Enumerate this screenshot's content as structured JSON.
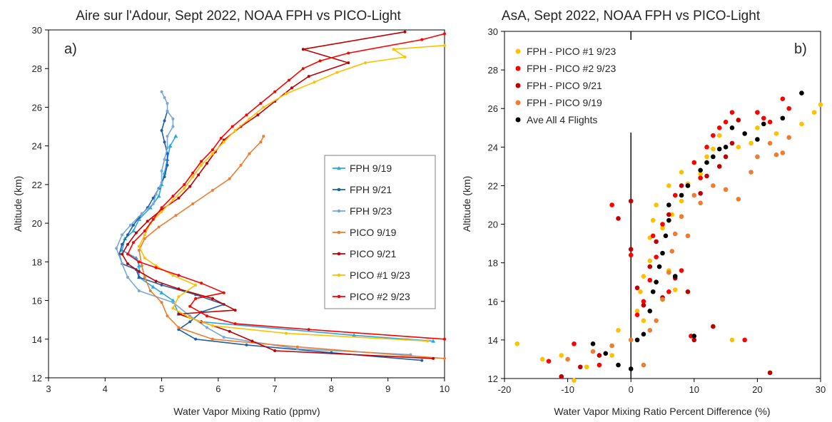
{
  "chart_data": [
    {
      "type": "line",
      "title": "Aire sur l'Adour, Sept 2022, NOAA FPH vs PICO-Light",
      "panel_label": "a)",
      "xlabel": "Water Vapor Mixing Ratio (ppmv)",
      "ylabel": "Altitude (km)",
      "xlim": [
        3,
        10
      ],
      "ylim": [
        12,
        30
      ],
      "xticks": [
        "3",
        "4",
        "5",
        "6",
        "7",
        "8",
        "9",
        "10"
      ],
      "yticks": [
        "12",
        "14",
        "16",
        "18",
        "20",
        "22",
        "24",
        "26",
        "28",
        "30"
      ],
      "grid": false,
      "legend_position": "right",
      "series": [
        {
          "name": "FPH 9/19",
          "color": "#29a8e0",
          "marker": "triangle",
          "x": [
            9.8,
            8.4,
            5.7,
            5.3,
            5.2,
            5.0,
            4.85,
            4.6,
            4.6,
            4.55,
            4.3,
            4.35,
            4.5,
            4.6,
            4.8,
            4.95,
            5.0,
            5.05,
            5.1,
            5.15,
            5.25
          ],
          "y": [
            13.9,
            14.2,
            14.9,
            15.3,
            16.0,
            16.4,
            16.7,
            17.2,
            17.8,
            18.2,
            18.6,
            19.2,
            19.6,
            20.2,
            20.8,
            21.4,
            22.0,
            22.6,
            23.3,
            24.0,
            24.5
          ]
        },
        {
          "name": "FPH 9/21",
          "color": "#1f5fa8",
          "marker": "circle",
          "x": [
            9.6,
            8.0,
            6.5,
            5.6,
            5.3,
            5.5,
            5.7,
            6.1,
            5.6,
            5.0,
            4.6,
            4.55,
            4.3,
            4.25,
            4.3,
            4.4,
            4.5,
            4.6,
            4.75,
            4.85,
            4.95,
            5.05,
            5.1,
            5.1,
            5.05,
            5.0,
            5.05,
            5.1
          ],
          "y": [
            12.9,
            13.3,
            13.7,
            14.0,
            14.5,
            14.9,
            15.4,
            15.8,
            16.3,
            16.8,
            17.2,
            17.6,
            17.9,
            18.4,
            18.9,
            19.4,
            19.9,
            20.3,
            20.8,
            21.3,
            21.8,
            22.4,
            23.0,
            23.6,
            24.2,
            24.8,
            25.3,
            25.8
          ]
        },
        {
          "name": "FPH 9/23",
          "color": "#78a8d8",
          "marker": "circle",
          "x": [
            9.4,
            7.4,
            6.1,
            5.8,
            5.5,
            5.2,
            4.6,
            4.4,
            4.3,
            4.2,
            4.3,
            4.45,
            4.65,
            4.85,
            4.9,
            5.0,
            5.0,
            5.05,
            5.1,
            5.1,
            5.2,
            5.2,
            5.1,
            5.1,
            5.05,
            5.0
          ],
          "y": [
            13.2,
            13.5,
            14.1,
            14.6,
            15.2,
            15.9,
            16.5,
            17.2,
            17.9,
            18.7,
            19.4,
            19.9,
            20.5,
            21.0,
            21.5,
            22.1,
            22.7,
            23.3,
            23.9,
            24.5,
            25.0,
            25.4,
            25.8,
            26.2,
            26.5,
            26.8
          ]
        },
        {
          "name": "PICO 9/19",
          "color": "#ed7d31",
          "marker": "circle",
          "x": [
            10.0,
            7.4,
            5.9,
            5.3,
            5.1,
            5.0,
            4.8,
            4.7,
            4.65,
            4.6,
            4.7,
            4.95,
            5.25,
            5.55,
            5.9,
            6.2,
            6.4,
            6.55,
            6.75,
            6.8
          ],
          "y": [
            13.0,
            13.6,
            14.0,
            14.6,
            15.2,
            15.9,
            16.5,
            17.2,
            17.8,
            18.6,
            19.2,
            19.8,
            20.4,
            21.0,
            21.7,
            22.3,
            23.0,
            23.6,
            24.2,
            24.5
          ]
        },
        {
          "name": "PICO 9/21",
          "color": "#c00000",
          "marker": "circle",
          "x": [
            9.8,
            7.0,
            6.6,
            6.2,
            5.7,
            5.3,
            6.3,
            5.9,
            5.3,
            4.9,
            4.6,
            4.4,
            4.3,
            4.4,
            4.55,
            4.75,
            5.0,
            5.3,
            5.5,
            5.65,
            5.8,
            5.95,
            6.1,
            6.4,
            6.7,
            7.0,
            7.3,
            7.6,
            8.3,
            7.5,
            9.3
          ],
          "y": [
            13.0,
            13.4,
            13.9,
            14.4,
            14.9,
            15.3,
            15.5,
            16.1,
            16.6,
            17.0,
            17.5,
            17.9,
            18.4,
            18.9,
            19.5,
            20.1,
            20.7,
            21.3,
            21.9,
            22.5,
            23.1,
            23.7,
            24.3,
            25.0,
            25.6,
            26.3,
            27.0,
            27.6,
            28.3,
            29.0,
            29.9
          ]
        },
        {
          "name": "PICO #1 9/23",
          "color": "#ffc000",
          "marker": "circle",
          "x": [
            9.7,
            7.2,
            5.9,
            5.5,
            5.2,
            5.3,
            5.6,
            5.2,
            4.9,
            4.7,
            4.6,
            4.7,
            4.8,
            5.0,
            5.2,
            5.4,
            5.55,
            5.7,
            5.9,
            6.1,
            6.3,
            6.55,
            6.8,
            7.2,
            7.7,
            8.1,
            8.6,
            9.3,
            9.1,
            10.0
          ],
          "y": [
            13.9,
            14.3,
            14.7,
            15.1,
            15.6,
            16.2,
            16.8,
            17.3,
            17.8,
            18.2,
            18.8,
            19.4,
            20.0,
            20.6,
            21.2,
            21.8,
            22.4,
            23.0,
            23.6,
            24.2,
            24.8,
            25.4,
            26.0,
            26.7,
            27.3,
            27.8,
            28.3,
            28.6,
            29.0,
            29.2
          ]
        },
        {
          "name": "PICO #2 9/23",
          "color": "#ff0000",
          "marker": "circle",
          "x": [
            10.0,
            7.6,
            6.3,
            5.8,
            5.5,
            5.6,
            6.1,
            5.7,
            5.3,
            4.9,
            4.6,
            4.4,
            4.5,
            4.7,
            4.85,
            5.0,
            5.2,
            5.4,
            5.55,
            5.7,
            5.9,
            6.05,
            6.25,
            6.5,
            6.75,
            7.0,
            7.25,
            7.5,
            7.8,
            8.3,
            9.6,
            10.0
          ],
          "y": [
            14.0,
            14.5,
            14.8,
            15.2,
            15.7,
            16.1,
            16.4,
            16.9,
            17.3,
            17.7,
            18.0,
            18.4,
            19.0,
            19.6,
            20.2,
            20.8,
            21.4,
            22.0,
            22.6,
            23.2,
            23.8,
            24.4,
            25.0,
            25.6,
            26.2,
            26.8,
            27.4,
            28.0,
            28.4,
            28.8,
            29.5,
            29.8
          ]
        }
      ]
    },
    {
      "type": "scatter",
      "title": "AsA, Sept 2022, NOAA FPH vs PICO-Light",
      "panel_label": "b)",
      "xlabel": "Water Vapor Mixing Ratio Percent Difference (%)",
      "ylabel": "Altitude (km)",
      "xlim": [
        -20,
        30
      ],
      "ylim": [
        12,
        30
      ],
      "xticks": [
        "-20",
        "-10",
        "0",
        "10",
        "20",
        "30"
      ],
      "yticks": [
        "12",
        "14",
        "16",
        "18",
        "20",
        "22",
        "24",
        "26",
        "28",
        "30"
      ],
      "grid": false,
      "legend_position": "top-left",
      "series": [
        {
          "name": "FPH - PICO #1 9/23",
          "color": "#ffc000",
          "x": [
            -18,
            -14,
            -11,
            -9,
            -7,
            -3,
            -2,
            1,
            1.5,
            2,
            2,
            3,
            3,
            3.5,
            4,
            4,
            5,
            5,
            6,
            6,
            6.5,
            7,
            8,
            8,
            9,
            10,
            11,
            12,
            13,
            14,
            16,
            17,
            19,
            20,
            23,
            27,
            29,
            30
          ],
          "y": [
            13.8,
            13.0,
            13.2,
            11.9,
            12.6,
            13.2,
            14.5,
            15.5,
            16.5,
            17.3,
            15.0,
            18.1,
            19.3,
            20.2,
            17.0,
            21.0,
            16.1,
            19.8,
            17.6,
            22.0,
            20.5,
            16.6,
            21.2,
            22.7,
            22.1,
            23.2,
            22.6,
            23.5,
            23.9,
            24.6,
            14.0,
            24.0,
            24.2,
            25.0,
            24.7,
            25.2,
            25.8,
            26.2
          ]
        },
        {
          "name": "FPH - PICO #2 9/23",
          "color": "#ff0000",
          "x": [
            -13,
            -11,
            -9,
            -5,
            -3,
            0,
            1,
            2,
            3,
            3.5,
            4,
            5,
            6,
            7,
            8,
            9,
            9.5,
            10,
            11,
            12,
            13,
            14,
            15,
            16,
            18,
            20,
            21,
            22,
            24,
            25
          ],
          "y": [
            12.9,
            12.1,
            13.8,
            12.7,
            21.0,
            18.4,
            15.3,
            16.0,
            17.1,
            19.4,
            18.3,
            20.0,
            16.5,
            21.5,
            17.6,
            22.0,
            14.2,
            23.2,
            22.4,
            24.0,
            24.6,
            25.0,
            25.3,
            25.8,
            14.0,
            25.8,
            25.5,
            25.3,
            26.5,
            26.0
          ]
        },
        {
          "name": "FPH - PICO 9/21",
          "color": "#c00000",
          "x": [
            -11,
            -8,
            -5,
            -2,
            0,
            0,
            1,
            2,
            3,
            4,
            5,
            6,
            7,
            8,
            9,
            10,
            11,
            12,
            13,
            14,
            15,
            16,
            17,
            22
          ],
          "y": [
            12.1,
            12.6,
            13.2,
            20.3,
            21.2,
            18.7,
            16.7,
            15.8,
            17.8,
            19.1,
            16.2,
            20.5,
            17.2,
            22.0,
            16.5,
            14.0,
            21.6,
            22.5,
            14.7,
            23.0,
            23.5,
            24.2,
            25.4,
            12.3
          ]
        },
        {
          "name": "FPH - PICO 9/19",
          "color": "#ed7d31",
          "x": [
            -10,
            -6,
            -3,
            0,
            2,
            3,
            4,
            5,
            6,
            6.5,
            7,
            8,
            9,
            10,
            11,
            13,
            15,
            17,
            19,
            20,
            22,
            23,
            24,
            25
          ],
          "y": [
            13.0,
            13.4,
            13.7,
            14.0,
            12.7,
            14.5,
            15.0,
            16.1,
            17.5,
            18.6,
            19.5,
            20.4,
            19.4,
            21.5,
            21.1,
            22.0,
            21.8,
            21.3,
            22.7,
            23.5,
            24.2,
            23.6,
            23.7,
            24.5
          ]
        },
        {
          "name": "Ave All 4 Flights",
          "color": "#000000",
          "x": [
            -6,
            -4,
            -2,
            0,
            1,
            2,
            3,
            3.5,
            4,
            4.5,
            5,
            5.5,
            6,
            6,
            7,
            8,
            9,
            10,
            11,
            12,
            13,
            14,
            15,
            16,
            18,
            20,
            21,
            24,
            27
          ],
          "y": [
            13.8,
            13.3,
            12.7,
            12.5,
            14.0,
            14.3,
            15.5,
            16.5,
            17.0,
            17.8,
            18.5,
            19.4,
            20.2,
            21.0,
            17.3,
            21.5,
            22.0,
            14.2,
            22.8,
            23.2,
            23.5,
            23.9,
            24.0,
            25.0,
            24.7,
            24.4,
            25.2,
            25.5,
            26.8
          ]
        }
      ]
    }
  ]
}
